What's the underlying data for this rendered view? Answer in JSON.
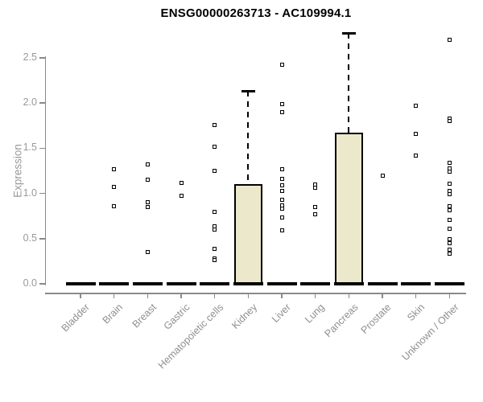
{
  "chart_data": {
    "type": "boxplot",
    "title": "ENSG00000263713 - AC109994.1",
    "xlabel": "",
    "ylabel": "Expression",
    "ylim": [
      0.0,
      2.77
    ],
    "ytick_labels": [
      "0.0",
      "0.5",
      "1.0",
      "1.5",
      "2.0",
      "2.5"
    ],
    "ytick_values": [
      0.0,
      0.5,
      1.0,
      1.5,
      2.0,
      2.5
    ],
    "grid": false,
    "legend": "none",
    "categories": [
      "Bladder",
      "Brain",
      "Breast",
      "Gastric",
      "Hematopoietic cells",
      "Kidney",
      "Liver",
      "Lung",
      "Pancreas",
      "Prostate",
      "Skin",
      "Unknown / Other"
    ],
    "boxes": [
      {
        "category": "Bladder",
        "median": 0.0,
        "q1": 0.0,
        "q3": 0.0,
        "whisker_low": 0.0,
        "whisker_high": 0.0,
        "outliers": []
      },
      {
        "category": "Brain",
        "median": 0.0,
        "q1": 0.0,
        "q3": 0.0,
        "whisker_low": 0.0,
        "whisker_high": 0.0,
        "outliers": [
          1.27,
          1.07,
          0.86
        ]
      },
      {
        "category": "Breast",
        "median": 0.0,
        "q1": 0.0,
        "q3": 0.0,
        "whisker_low": 0.0,
        "whisker_high": 0.0,
        "outliers": [
          1.32,
          1.15,
          0.9,
          0.85,
          0.35
        ]
      },
      {
        "category": "Gastric",
        "median": 0.0,
        "q1": 0.0,
        "q3": 0.0,
        "whisker_low": 0.0,
        "whisker_high": 0.0,
        "outliers": [
          1.12,
          0.97
        ]
      },
      {
        "category": "Hematopoietic cells",
        "median": 0.0,
        "q1": 0.0,
        "q3": 0.0,
        "whisker_low": 0.0,
        "whisker_high": 0.0,
        "outliers": [
          1.76,
          1.52,
          1.25,
          0.8,
          0.64,
          0.6,
          0.39,
          0.28,
          0.26
        ]
      },
      {
        "category": "Kidney",
        "median": 0.0,
        "q1": 0.0,
        "q3": 1.1,
        "whisker_low": 0.0,
        "whisker_high": 2.13,
        "outliers": []
      },
      {
        "category": "Liver",
        "median": 0.0,
        "q1": 0.0,
        "q3": 0.0,
        "whisker_low": 0.0,
        "whisker_high": 0.0,
        "outliers": [
          2.42,
          1.99,
          1.9,
          1.27,
          1.16,
          1.09,
          1.03,
          0.93,
          0.87,
          0.83,
          0.73,
          0.59
        ]
      },
      {
        "category": "Lung",
        "median": 0.0,
        "q1": 0.0,
        "q3": 0.0,
        "whisker_low": 0.0,
        "whisker_high": 0.0,
        "outliers": [
          1.1,
          1.06,
          0.85,
          0.77
        ]
      },
      {
        "category": "Pancreas",
        "median": 0.0,
        "q1": 0.0,
        "q3": 1.67,
        "whisker_low": 0.0,
        "whisker_high": 2.77,
        "outliers": []
      },
      {
        "category": "Prostate",
        "median": 0.0,
        "q1": 0.0,
        "q3": 0.0,
        "whisker_low": 0.0,
        "whisker_high": 0.0,
        "outliers": [
          1.2
        ]
      },
      {
        "category": "Skin",
        "median": 0.0,
        "q1": 0.0,
        "q3": 0.0,
        "whisker_low": 0.0,
        "whisker_high": 0.0,
        "outliers": [
          1.97,
          1.66,
          1.42
        ]
      },
      {
        "category": "Unknown / Other",
        "median": 0.0,
        "q1": 0.0,
        "q3": 0.0,
        "whisker_low": 0.0,
        "whisker_high": 0.0,
        "outliers": [
          2.7,
          1.83,
          1.8,
          1.34,
          1.28,
          1.24,
          1.11,
          1.03,
          0.99,
          0.86,
          0.81,
          0.71,
          0.61,
          0.49,
          0.45,
          0.38,
          0.33
        ]
      }
    ],
    "colors": {
      "background": "#ffffff",
      "box_fill": "#ECE8CC",
      "box_border": "#000000",
      "median_bar": "#000000",
      "whisker": "#000000",
      "outlier": "#000000",
      "axis": "#8a8a8a",
      "tick_label": "#999999",
      "title": "#000000"
    }
  }
}
